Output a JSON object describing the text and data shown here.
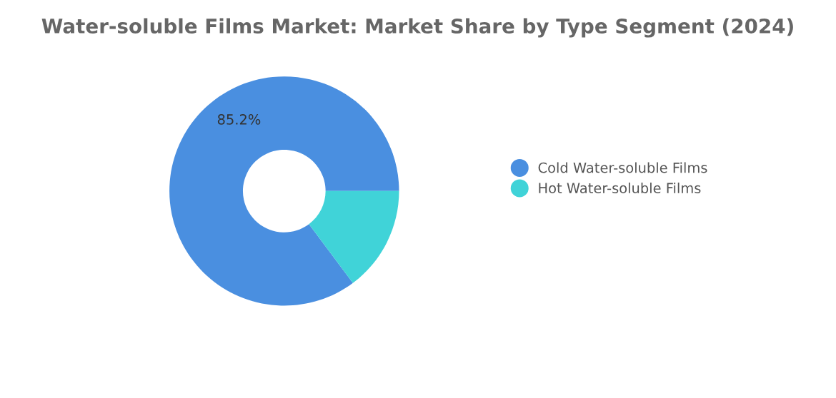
{
  "chart_data": {
    "type": "donut",
    "title": "Water-soluble Films Market: Market Share by Type Segment (2024)",
    "categories": [
      "Cold Water-soluble Films",
      "Hot Water-soluble Films"
    ],
    "values": [
      85.2,
      14.8
    ],
    "colors": [
      "#4a8fe0",
      "#40d3d8"
    ],
    "value_labels": [
      "85.2%",
      null
    ],
    "legend": "right"
  }
}
